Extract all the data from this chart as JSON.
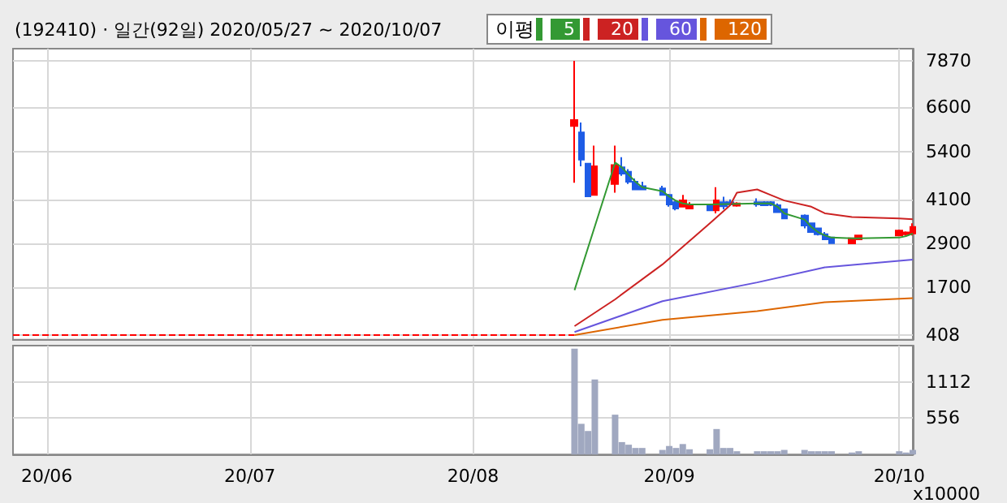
{
  "chart_data": [
    {
      "type": "candlestick",
      "title": "(192410) · 일간(92일) 2020/05/27 ~ 2020/10/07",
      "legend_title": "이평",
      "legend": "top",
      "grid": true,
      "tick_labels": "y",
      "xlim": [
        "2020-05-27",
        "2020-10-07"
      ],
      "xticks": [
        {
          "value": "2020-06-01",
          "label": null
        },
        {
          "value": "2020-07-01",
          "label": null
        },
        {
          "value": "2020-08-03",
          "label": null
        },
        {
          "value": "2020-09-01",
          "label": null
        },
        {
          "value": "2020-10-05",
          "label": null
        }
      ],
      "ylim": [
        280,
        8200
      ],
      "yticks": [
        408,
        1700,
        2900,
        4100,
        5400,
        6600,
        7870
      ],
      "series": [
        {
          "type": "candlestick",
          "x": [
            "2020-08-18",
            "2020-08-19",
            "2020-08-20",
            "2020-08-21",
            "2020-08-24",
            "2020-08-25",
            "2020-08-26",
            "2020-08-27",
            "2020-08-28",
            "2020-08-31",
            "2020-09-01",
            "2020-09-02",
            "2020-09-03",
            "2020-09-04",
            "2020-09-07",
            "2020-09-08",
            "2020-09-09",
            "2020-09-10",
            "2020-09-11",
            "2020-09-14",
            "2020-09-15",
            "2020-09-16",
            "2020-09-17",
            "2020-09-18",
            "2020-09-21",
            "2020-09-22",
            "2020-09-23",
            "2020-09-24",
            "2020-09-25",
            "2020-09-28",
            "2020-09-29",
            "2020-10-05",
            "2020-10-06",
            "2020-10-07"
          ],
          "ohlc": [
            [
              6100,
              7870,
              4550,
              6260
            ],
            [
              5920,
              6190,
              5000,
              5180
            ],
            [
              5070,
              5080,
              4170,
              4180
            ],
            [
              4220,
              5560,
              4220,
              5000
            ],
            [
              4520,
              5560,
              4280,
              5030
            ],
            [
              4970,
              5250,
              4740,
              4800
            ],
            [
              4850,
              4920,
              4520,
              4580
            ],
            [
              4580,
              4670,
              4370,
              4370
            ],
            [
              4460,
              4580,
              4370,
              4370
            ],
            [
              4400,
              4470,
              4220,
              4220
            ],
            [
              4220,
              4250,
              3900,
              3960
            ],
            [
              4020,
              4060,
              3800,
              3850
            ],
            [
              3900,
              4220,
              3890,
              4070
            ],
            [
              3850,
              4020,
              3830,
              3960
            ],
            [
              3960,
              3960,
              3800,
              3800
            ],
            [
              3800,
              4430,
              3720,
              4070
            ],
            [
              4020,
              4170,
              3830,
              3910
            ],
            [
              4020,
              4100,
              3940,
              3960
            ],
            [
              3930,
              4020,
              3900,
              3990
            ],
            [
              4020,
              4130,
              3900,
              3960
            ],
            [
              4020,
              4050,
              3920,
              3940
            ],
            [
              4020,
              4050,
              3920,
              3950
            ],
            [
              3940,
              3990,
              3740,
              3750
            ],
            [
              3830,
              3850,
              3560,
              3580
            ],
            [
              3660,
              3690,
              3310,
              3390
            ],
            [
              3450,
              3470,
              3190,
              3210
            ],
            [
              3310,
              3330,
              3120,
              3150
            ],
            [
              3150,
              3210,
              2990,
              3010
            ],
            [
              3060,
              3080,
              2900,
              2910
            ],
            [
              2900,
              3060,
              2890,
              3040
            ],
            [
              3010,
              3130,
              3000,
              3120
            ],
            [
              3120,
              3280,
              3100,
              3250
            ],
            [
              3150,
              3230,
              3120,
              3200
            ],
            [
              3170,
              3450,
              3120,
              3350
            ]
          ],
          "colors": [
            "#ff0000",
            "#1e5ce6",
            "#1e5ce6",
            "#ff0000",
            "#ff0000",
            "#1e5ce6",
            "#1e5ce6",
            "#1e5ce6",
            "#1e5ce6",
            "#1e5ce6",
            "#1e5ce6",
            "#1e5ce6",
            "#ff0000",
            "#ff0000",
            "#1e5ce6",
            "#ff0000",
            "#1e5ce6",
            "#1e5ce6",
            "#ff0000",
            "#1e5ce6",
            "#1e5ce6",
            "#1e5ce6",
            "#1e5ce6",
            "#1e5ce6",
            "#1e5ce6",
            "#1e5ce6",
            "#1e5ce6",
            "#1e5ce6",
            "#1e5ce6",
            "#ff0000",
            "#ff0000",
            "#ff0000",
            "#ff0000",
            "#ff0000"
          ]
        },
        {
          "type": "line",
          "line_style": "dashed",
          "color": "#ff0000",
          "x": [
            "2020-05-27",
            "2020-08-18"
          ],
          "values": [
            408,
            408
          ]
        },
        {
          "type": "line",
          "name": "5",
          "color": "#339933",
          "x": [
            "2020-08-18",
            "2020-08-24",
            "2020-08-25",
            "2020-08-26",
            "2020-08-27",
            "2020-08-28",
            "2020-08-31",
            "2020-09-01",
            "2020-09-02",
            "2020-09-03",
            "2020-09-04",
            "2020-09-07",
            "2020-09-14",
            "2020-09-16",
            "2020-09-17",
            "2020-09-18",
            "2020-09-21",
            "2020-09-22",
            "2020-09-23",
            "2020-09-24",
            "2020-09-25",
            "2020-09-28",
            "2020-09-29",
            "2020-10-05",
            "2020-10-06",
            "2020-10-07"
          ],
          "values": [
            1630,
            5100,
            4970,
            4770,
            4580,
            4430,
            4320,
            4180,
            4060,
            3990,
            3960,
            3960,
            3990,
            3990,
            3900,
            3720,
            3550,
            3350,
            3210,
            3120,
            3060,
            3040,
            3040,
            3060,
            3100,
            3170
          ]
        },
        {
          "type": "line",
          "name": "20",
          "color": "#cc2222",
          "x": [
            "2020-08-18",
            "2020-08-24",
            "2020-08-31",
            "2020-09-07",
            "2020-09-10",
            "2020-09-11",
            "2020-09-14",
            "2020-09-16",
            "2020-09-18",
            "2020-09-22",
            "2020-09-24",
            "2020-09-28",
            "2020-10-05",
            "2020-10-07"
          ],
          "values": [
            650,
            1380,
            2330,
            3450,
            3940,
            4280,
            4370,
            4220,
            4070,
            3900,
            3720,
            3620,
            3580,
            3560
          ]
        },
        {
          "type": "line",
          "name": "60",
          "color": "#6655dd",
          "x": [
            "2020-08-18",
            "2020-08-31",
            "2020-09-14",
            "2020-09-24",
            "2020-10-07"
          ],
          "values": [
            490,
            1330,
            1840,
            2250,
            2460
          ]
        },
        {
          "type": "line",
          "name": "120",
          "color": "#dd6600",
          "x": [
            "2020-08-18",
            "2020-08-31",
            "2020-09-14",
            "2020-09-24",
            "2020-10-07"
          ],
          "values": [
            410,
            820,
            1060,
            1300,
            1410
          ]
        }
      ]
    },
    {
      "type": "bar",
      "ylabel": "x10000",
      "grid": true,
      "xlim": [
        "2020-05-27",
        "2020-10-07"
      ],
      "xticks": [
        {
          "value": "2020-06-01",
          "label": "20/06"
        },
        {
          "value": "2020-07-01",
          "label": "20/07"
        },
        {
          "value": "2020-08-03",
          "label": "20/08"
        },
        {
          "value": "2020-09-01",
          "label": "20/09"
        },
        {
          "value": "2020-10-05",
          "label": "20/10"
        }
      ],
      "ylim": [
        0,
        1668
      ],
      "yticks": [
        556,
        1112
      ],
      "series": [
        {
          "color": "#a0a8c0",
          "x": [
            "2020-08-18",
            "2020-08-19",
            "2020-08-20",
            "2020-08-21",
            "2020-08-24",
            "2020-08-25",
            "2020-08-26",
            "2020-08-27",
            "2020-08-28",
            "2020-08-31",
            "2020-09-01",
            "2020-09-02",
            "2020-09-03",
            "2020-09-04",
            "2020-09-07",
            "2020-09-08",
            "2020-09-09",
            "2020-09-10",
            "2020-09-11",
            "2020-09-14",
            "2020-09-15",
            "2020-09-16",
            "2020-09-17",
            "2020-09-18",
            "2020-09-21",
            "2020-09-22",
            "2020-09-23",
            "2020-09-24",
            "2020-09-25",
            "2020-09-28",
            "2020-09-29",
            "2020-10-05",
            "2020-10-06",
            "2020-10-07"
          ],
          "values": [
            1620,
            470,
            360,
            1150,
            610,
            190,
            150,
            100,
            100,
            70,
            130,
            100,
            160,
            80,
            80,
            390,
            100,
            100,
            50,
            50,
            50,
            50,
            50,
            70,
            70,
            50,
            50,
            50,
            50,
            30,
            50,
            50,
            30,
            70
          ]
        }
      ]
    }
  ]
}
